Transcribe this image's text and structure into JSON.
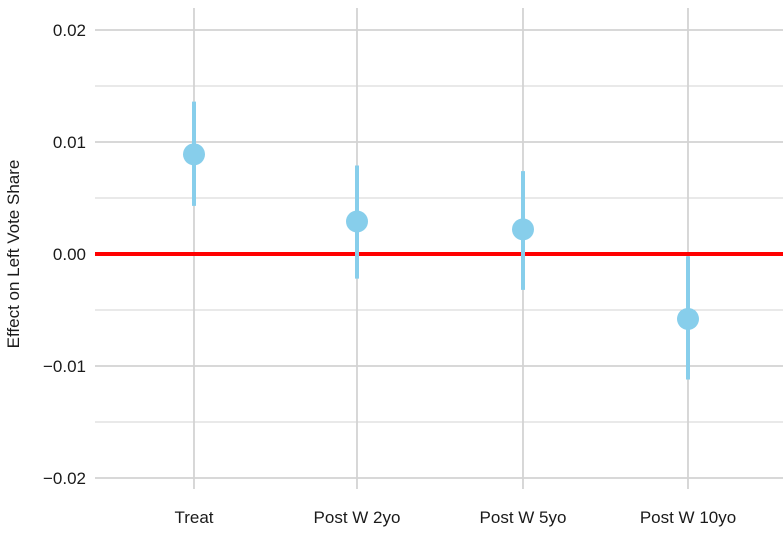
{
  "chart_data": {
    "type": "scatter",
    "subtype": "coefficient-plot",
    "title": "",
    "xlabel": "",
    "ylabel": "Effect on Left Vote Share",
    "categories": [
      "Treat",
      "Post W 2yo",
      "Post W 5yo",
      "Post W 10yo"
    ],
    "series": [
      {
        "estimates": [
          0.0089,
          0.0029,
          0.0022,
          -0.0058
        ],
        "ci_lower": [
          0.0043,
          -0.0022,
          -0.0032,
          -0.0112
        ],
        "ci_upper": [
          0.0136,
          0.0079,
          0.0074,
          -0.0002
        ]
      }
    ],
    "ylim": [
      -0.0215,
      0.0215
    ],
    "yticks": [
      -0.02,
      -0.01,
      0.0,
      0.01,
      0.02
    ],
    "ytick_labels": [
      "−0.02",
      "−0.01",
      "0.00",
      "0.01",
      "0.02"
    ],
    "reference_line": {
      "y": 0.0
    },
    "grid": true,
    "legend": "none",
    "colors": {
      "points": "#87CEEB",
      "reference_line": "#FF0000",
      "grid": "#D3D3D3"
    }
  }
}
